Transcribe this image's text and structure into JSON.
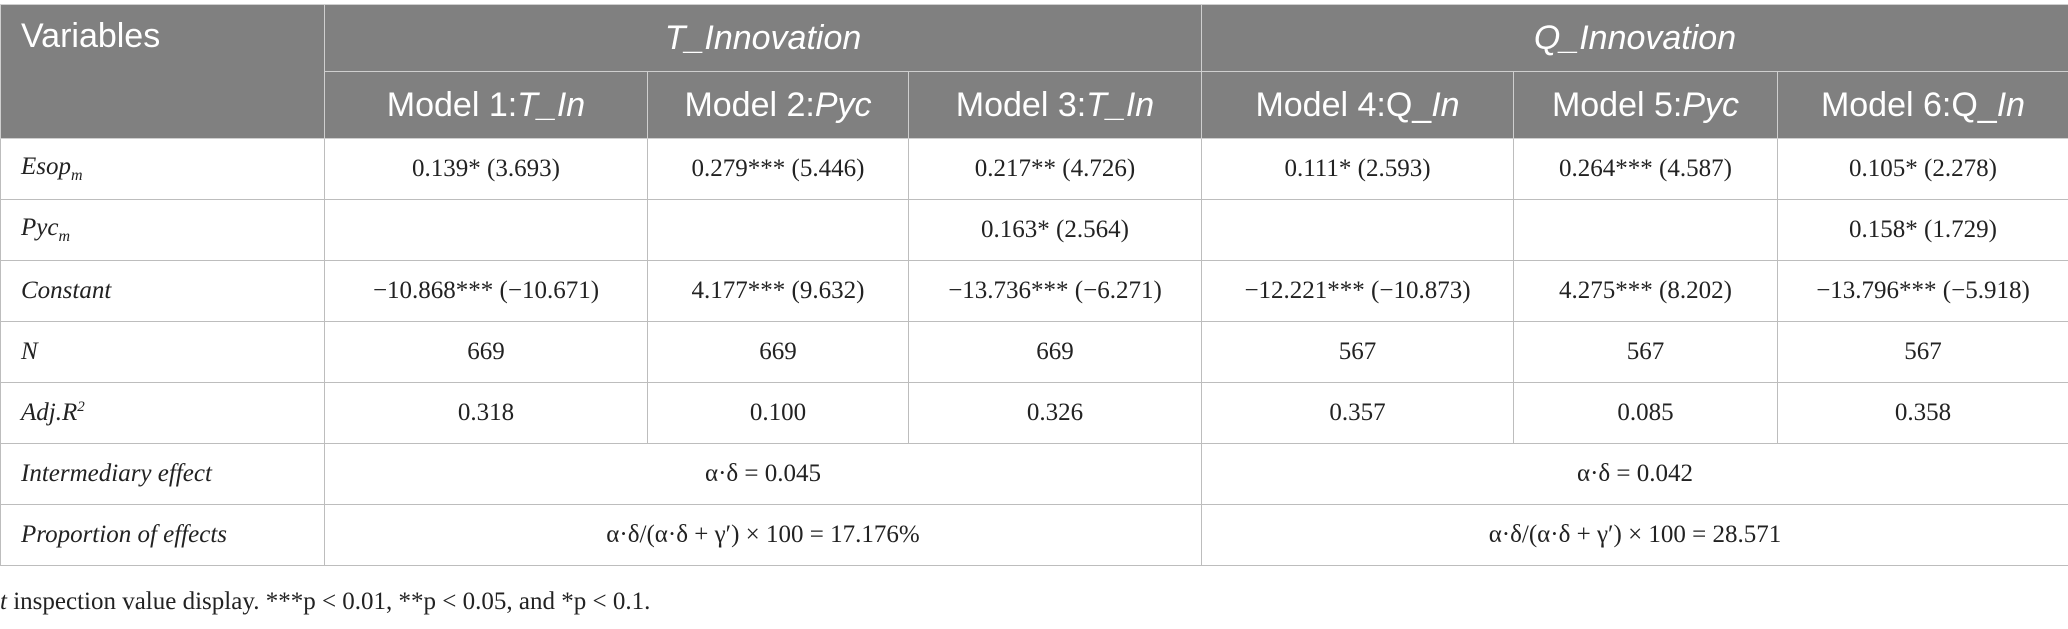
{
  "header": {
    "variables_label": "Variables",
    "group_t": "T_Innovation",
    "group_q": "Q_Innovation",
    "models": [
      {
        "prefix": "Model 1:",
        "dep": "T_In"
      },
      {
        "prefix": "Model 2:",
        "dep": "Pyc"
      },
      {
        "prefix": "Model 3:",
        "dep": "T_In"
      },
      {
        "prefix": "Model 4:",
        "dep": "Q_",
        "dep_italic": "In"
      },
      {
        "prefix": "Model 5:",
        "dep": "Pyc"
      },
      {
        "prefix": "Model 6:",
        "dep": "Q_",
        "dep_italic": "In"
      }
    ]
  },
  "rows": {
    "esop": {
      "label": "Esop",
      "sub": "m",
      "cells": [
        "0.139* (3.693)",
        "0.279*** (5.446)",
        "0.217** (4.726)",
        "0.111* (2.593)",
        "0.264*** (4.587)",
        "0.105* (2.278)"
      ]
    },
    "pyc": {
      "label": "Pyc",
      "sub": "m",
      "cells": [
        "",
        "",
        "0.163* (2.564)",
        "",
        "",
        "0.158* (1.729)"
      ]
    },
    "constant": {
      "label": "Constant",
      "cells": [
        "−10.868*** (−10.671)",
        "4.177*** (9.632)",
        "−13.736*** (−6.271)",
        "−12.221*** (−10.873)",
        "4.275*** (8.202)",
        "−13.796*** (−5.918)"
      ]
    },
    "n": {
      "label": "N",
      "cells": [
        "669",
        "669",
        "669",
        "567",
        "567",
        "567"
      ]
    },
    "adjr2": {
      "label": "Adj.R",
      "sup": "2",
      "cells": [
        "0.318",
        "0.100",
        "0.326",
        "0.357",
        "0.085",
        "0.358"
      ]
    },
    "intermediary": {
      "label": "Intermediary effect",
      "t_value": "α·δ = 0.045",
      "q_value": "α·δ = 0.042"
    },
    "proportion": {
      "label": "Proportion of effects",
      "t_value": "α·δ/(α·δ + γ′) × 100 = 17.176%",
      "q_value": "α·δ/(α·δ + γ′) × 100 = 28.571"
    }
  },
  "footnote": {
    "t": "t",
    "text": " inspection value display. ***p < 0.01, **p < 0.05, and *p < 0.1."
  }
}
